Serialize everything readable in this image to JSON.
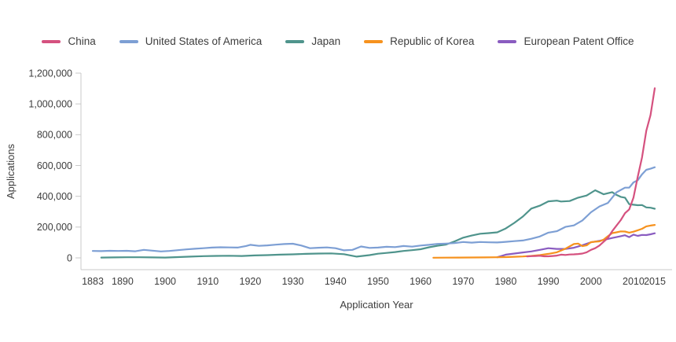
{
  "chart_data": {
    "type": "line",
    "title": "",
    "xlabel": "Application Year",
    "ylabel": "Applications",
    "xlim": [
      1883,
      2015
    ],
    "ylim": [
      0,
      1200000
    ],
    "grid": false,
    "legend_position": "top",
    "axis_color": "#c9c9c9",
    "text_color": "#3d3d3d",
    "x_ticks": [
      {
        "v": 1883,
        "label": "1883"
      },
      {
        "v": 1890,
        "label": "1890"
      },
      {
        "v": 1900,
        "label": "1900"
      },
      {
        "v": 1910,
        "label": "1910"
      },
      {
        "v": 1920,
        "label": "1920"
      },
      {
        "v": 1930,
        "label": "1930"
      },
      {
        "v": 1940,
        "label": "1940"
      },
      {
        "v": 1950,
        "label": "1950"
      },
      {
        "v": 1960,
        "label": "1960"
      },
      {
        "v": 1970,
        "label": "1970"
      },
      {
        "v": 1980,
        "label": "1980"
      },
      {
        "v": 1990,
        "label": "1990"
      },
      {
        "v": 2000,
        "label": "2000"
      },
      {
        "v": 2010,
        "label": "2010"
      },
      {
        "v": 2015,
        "label": "2015"
      }
    ],
    "y_ticks": [
      {
        "v": 0,
        "label": "0"
      },
      {
        "v": 200000,
        "label": "200,000"
      },
      {
        "v": 400000,
        "label": "400,000"
      },
      {
        "v": 600000,
        "label": "600,000"
      },
      {
        "v": 800000,
        "label": "800,000"
      },
      {
        "v": 1000000,
        "label": "1,000,000"
      },
      {
        "v": 1200000,
        "label": "1,200,000"
      }
    ],
    "series": [
      {
        "name": "China",
        "color": "#d5517f",
        "points": [
          [
            1985,
            9000
          ],
          [
            1986,
            11000
          ],
          [
            1987,
            12000
          ],
          [
            1988,
            14000
          ],
          [
            1989,
            10000
          ],
          [
            1990,
            10000
          ],
          [
            1991,
            12000
          ],
          [
            1992,
            15000
          ],
          [
            1993,
            21000
          ],
          [
            1994,
            19000
          ],
          [
            1995,
            22000
          ],
          [
            1996,
            23000
          ],
          [
            1997,
            25000
          ],
          [
            1998,
            28000
          ],
          [
            1999,
            36000
          ],
          [
            2000,
            52000
          ],
          [
            2001,
            63000
          ],
          [
            2002,
            80000
          ],
          [
            2003,
            105000
          ],
          [
            2004,
            130000
          ],
          [
            2005,
            173000
          ],
          [
            2006,
            210000
          ],
          [
            2007,
            245000
          ],
          [
            2008,
            290000
          ],
          [
            2009,
            315000
          ],
          [
            2010,
            391000
          ],
          [
            2011,
            526000
          ],
          [
            2012,
            653000
          ],
          [
            2013,
            825000
          ],
          [
            2014,
            928000
          ],
          [
            2015,
            1102000
          ]
        ]
      },
      {
        "name": "United States of America",
        "color": "#7d9fd4",
        "points": [
          [
            1883,
            45000
          ],
          [
            1885,
            44000
          ],
          [
            1887,
            46000
          ],
          [
            1889,
            45000
          ],
          [
            1891,
            46000
          ],
          [
            1893,
            43000
          ],
          [
            1895,
            52000
          ],
          [
            1897,
            47000
          ],
          [
            1899,
            42000
          ],
          [
            1901,
            45000
          ],
          [
            1903,
            50000
          ],
          [
            1905,
            55000
          ],
          [
            1907,
            59000
          ],
          [
            1909,
            63000
          ],
          [
            1911,
            67000
          ],
          [
            1913,
            69000
          ],
          [
            1915,
            68000
          ],
          [
            1917,
            67000
          ],
          [
            1919,
            77000
          ],
          [
            1920,
            85000
          ],
          [
            1922,
            78000
          ],
          [
            1924,
            81000
          ],
          [
            1926,
            86000
          ],
          [
            1928,
            90000
          ],
          [
            1930,
            92000
          ],
          [
            1932,
            80000
          ],
          [
            1934,
            63000
          ],
          [
            1936,
            66000
          ],
          [
            1938,
            68000
          ],
          [
            1940,
            63000
          ],
          [
            1942,
            49000
          ],
          [
            1944,
            52000
          ],
          [
            1946,
            74000
          ],
          [
            1948,
            65000
          ],
          [
            1950,
            67000
          ],
          [
            1952,
            72000
          ],
          [
            1954,
            70000
          ],
          [
            1956,
            77000
          ],
          [
            1958,
            73000
          ],
          [
            1960,
            80000
          ],
          [
            1962,
            85000
          ],
          [
            1964,
            91000
          ],
          [
            1966,
            93000
          ],
          [
            1968,
            96000
          ],
          [
            1970,
            103000
          ],
          [
            1972,
            99000
          ],
          [
            1974,
            103000
          ],
          [
            1976,
            101000
          ],
          [
            1978,
            100000
          ],
          [
            1980,
            104000
          ],
          [
            1982,
            109000
          ],
          [
            1984,
            113000
          ],
          [
            1986,
            124000
          ],
          [
            1988,
            139000
          ],
          [
            1990,
            164000
          ],
          [
            1992,
            173000
          ],
          [
            1994,
            201000
          ],
          [
            1996,
            211000
          ],
          [
            1998,
            243000
          ],
          [
            2000,
            296000
          ],
          [
            2002,
            334000
          ],
          [
            2004,
            357000
          ],
          [
            2006,
            426000
          ],
          [
            2008,
            456000
          ],
          [
            2009,
            456000
          ],
          [
            2010,
            490000
          ],
          [
            2011,
            504000
          ],
          [
            2012,
            543000
          ],
          [
            2013,
            572000
          ],
          [
            2014,
            579000
          ],
          [
            2015,
            589000
          ]
        ]
      },
      {
        "name": "Japan",
        "color": "#4f948c",
        "points": [
          [
            1885,
            2000
          ],
          [
            1888,
            3000
          ],
          [
            1891,
            4000
          ],
          [
            1894,
            4000
          ],
          [
            1897,
            3000
          ],
          [
            1900,
            2000
          ],
          [
            1903,
            5000
          ],
          [
            1906,
            8000
          ],
          [
            1909,
            11000
          ],
          [
            1912,
            13000
          ],
          [
            1915,
            14000
          ],
          [
            1918,
            12000
          ],
          [
            1921,
            16000
          ],
          [
            1924,
            18000
          ],
          [
            1927,
            21000
          ],
          [
            1930,
            23000
          ],
          [
            1933,
            26000
          ],
          [
            1936,
            28000
          ],
          [
            1939,
            29000
          ],
          [
            1942,
            24000
          ],
          [
            1945,
            8000
          ],
          [
            1948,
            18000
          ],
          [
            1950,
            27000
          ],
          [
            1952,
            32000
          ],
          [
            1954,
            38000
          ],
          [
            1956,
            45000
          ],
          [
            1958,
            50000
          ],
          [
            1960,
            56000
          ],
          [
            1962,
            69000
          ],
          [
            1964,
            79000
          ],
          [
            1966,
            87000
          ],
          [
            1968,
            107000
          ],
          [
            1970,
            131000
          ],
          [
            1972,
            145000
          ],
          [
            1974,
            157000
          ],
          [
            1976,
            161000
          ],
          [
            1978,
            166000
          ],
          [
            1980,
            191000
          ],
          [
            1982,
            227000
          ],
          [
            1984,
            268000
          ],
          [
            1986,
            320000
          ],
          [
            1988,
            339000
          ],
          [
            1990,
            367000
          ],
          [
            1992,
            372000
          ],
          [
            1993,
            366000
          ],
          [
            1995,
            369000
          ],
          [
            1997,
            391000
          ],
          [
            1999,
            405000
          ],
          [
            2001,
            439000
          ],
          [
            2003,
            413000
          ],
          [
            2005,
            427000
          ],
          [
            2006,
            409000
          ],
          [
            2007,
            396000
          ],
          [
            2008,
            391000
          ],
          [
            2009,
            349000
          ],
          [
            2010,
            345000
          ],
          [
            2011,
            342000
          ],
          [
            2012,
            343000
          ],
          [
            2013,
            328000
          ],
          [
            2014,
            326000
          ],
          [
            2015,
            319000
          ]
        ]
      },
      {
        "name": "Republic of Korea",
        "color": "#f6921e",
        "points": [
          [
            1963,
            1000
          ],
          [
            1966,
            1500
          ],
          [
            1969,
            2000
          ],
          [
            1972,
            2500
          ],
          [
            1975,
            3000
          ],
          [
            1978,
            4000
          ],
          [
            1980,
            5000
          ],
          [
            1982,
            7000
          ],
          [
            1984,
            9000
          ],
          [
            1986,
            13000
          ],
          [
            1988,
            18000
          ],
          [
            1990,
            26000
          ],
          [
            1992,
            36000
          ],
          [
            1994,
            60000
          ],
          [
            1996,
            90000
          ],
          [
            1997,
            93000
          ],
          [
            1998,
            76000
          ],
          [
            1999,
            81000
          ],
          [
            2000,
            102000
          ],
          [
            2001,
            105000
          ],
          [
            2002,
            107000
          ],
          [
            2003,
            119000
          ],
          [
            2004,
            141000
          ],
          [
            2005,
            161000
          ],
          [
            2006,
            166000
          ],
          [
            2007,
            172000
          ],
          [
            2008,
            171000
          ],
          [
            2009,
            164000
          ],
          [
            2010,
            170000
          ],
          [
            2011,
            179000
          ],
          [
            2012,
            189000
          ],
          [
            2013,
            205000
          ],
          [
            2014,
            210000
          ],
          [
            2015,
            214000
          ]
        ]
      },
      {
        "name": "European Patent Office",
        "color": "#8a5cc0",
        "points": [
          [
            1978,
            4000
          ],
          [
            1980,
            21000
          ],
          [
            1982,
            28000
          ],
          [
            1984,
            35000
          ],
          [
            1986,
            42000
          ],
          [
            1988,
            52000
          ],
          [
            1990,
            63000
          ],
          [
            1992,
            58000
          ],
          [
            1994,
            58000
          ],
          [
            1996,
            66000
          ],
          [
            1998,
            82000
          ],
          [
            2000,
            101000
          ],
          [
            2002,
            111000
          ],
          [
            2004,
            123000
          ],
          [
            2005,
            129000
          ],
          [
            2006,
            135000
          ],
          [
            2007,
            141000
          ],
          [
            2008,
            147000
          ],
          [
            2009,
            135000
          ],
          [
            2010,
            151000
          ],
          [
            2011,
            143000
          ],
          [
            2012,
            149000
          ],
          [
            2013,
            148000
          ],
          [
            2014,
            153000
          ],
          [
            2015,
            160000
          ]
        ]
      }
    ]
  }
}
